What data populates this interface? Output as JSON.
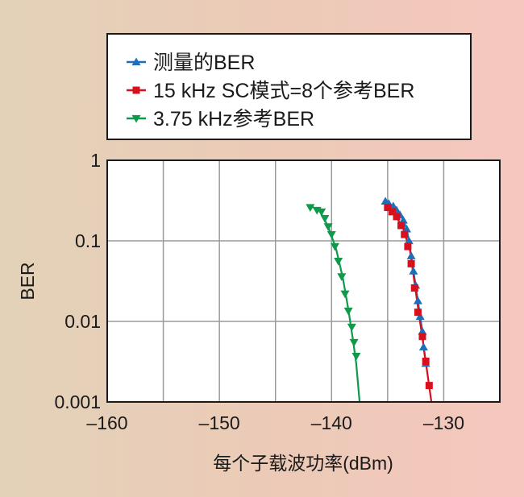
{
  "chart_data": {
    "type": "line",
    "xlabel": "每个子载波功率(dBm)",
    "ylabel": "BER",
    "xlim": [
      -160,
      -125
    ],
    "ylim": [
      0.001,
      1
    ],
    "yscale": "log",
    "grid": true,
    "legend_position": "top",
    "x_ticks": [
      -160,
      -150,
      -140,
      -130
    ],
    "x_tick_labels": [
      "–160",
      "–150",
      "–140",
      "–130"
    ],
    "y_ticks": [
      1,
      0.1,
      0.01,
      0.001
    ],
    "y_tick_labels": [
      "1",
      "0.1",
      "0.01",
      "0.001"
    ],
    "series": [
      {
        "name": "测量的BER",
        "color": "#1f6fb8",
        "marker": "triangle-up",
        "points": [
          [
            -135.2,
            0.31
          ],
          [
            -134.9,
            0.29
          ],
          [
            -134.5,
            0.27
          ],
          [
            -134.2,
            0.24
          ],
          [
            -133.9,
            0.21
          ],
          [
            -133.6,
            0.18
          ],
          [
            -133.3,
            0.14
          ],
          [
            -133.1,
            0.1
          ],
          [
            -132.9,
            0.065
          ],
          [
            -132.7,
            0.042
          ],
          [
            -132.5,
            0.028
          ],
          [
            -132.3,
            0.018
          ],
          [
            -132.1,
            0.0115
          ],
          [
            -131.9,
            0.0075
          ],
          [
            -131.8,
            0.0048
          ],
          [
            -131.6,
            0.003
          ]
        ]
      },
      {
        "name": "15 kHz SC模式=8个参考BER",
        "color": "#d8101e",
        "marker": "square",
        "points": [
          [
            -135.0,
            0.26
          ],
          [
            -134.6,
            0.23
          ],
          [
            -134.2,
            0.2
          ],
          [
            -133.8,
            0.155
          ],
          [
            -133.5,
            0.12
          ],
          [
            -133.2,
            0.085
          ],
          [
            -132.9,
            0.052
          ],
          [
            -132.6,
            0.026
          ],
          [
            -132.3,
            0.013
          ],
          [
            -131.9,
            0.0065
          ],
          [
            -131.6,
            0.0032
          ],
          [
            -131.3,
            0.0016
          ]
        ],
        "curve": [
          [
            -135.2,
            0.28
          ],
          [
            -134.4,
            0.22
          ],
          [
            -133.6,
            0.14
          ],
          [
            -133.0,
            0.075
          ],
          [
            -132.6,
            0.03
          ],
          [
            -132.2,
            0.012
          ],
          [
            -131.8,
            0.005
          ],
          [
            -131.5,
            0.0025
          ],
          [
            -131.1,
            0.001
          ]
        ]
      },
      {
        "name": "3.75 kHz参考BER",
        "color": "#0e9a4a",
        "marker": "triangle-down",
        "points": [
          [
            -141.9,
            0.26
          ],
          [
            -141.3,
            0.24
          ],
          [
            -140.9,
            0.23
          ],
          [
            -140.6,
            0.19
          ],
          [
            -140.3,
            0.15
          ],
          [
            -140.0,
            0.12
          ],
          [
            -139.7,
            0.085
          ],
          [
            -139.4,
            0.056
          ],
          [
            -139.1,
            0.036
          ],
          [
            -138.8,
            0.022
          ],
          [
            -138.5,
            0.0135
          ],
          [
            -138.2,
            0.0085
          ],
          [
            -138.0,
            0.0055
          ],
          [
            -137.8,
            0.0037
          ]
        ],
        "curve": [
          [
            -142.0,
            0.28
          ],
          [
            -141.0,
            0.23
          ],
          [
            -140.3,
            0.15
          ],
          [
            -139.6,
            0.08
          ],
          [
            -139.0,
            0.035
          ],
          [
            -138.5,
            0.014
          ],
          [
            -138.1,
            0.006
          ],
          [
            -137.8,
            0.003
          ],
          [
            -137.5,
            0.001
          ]
        ]
      }
    ]
  }
}
